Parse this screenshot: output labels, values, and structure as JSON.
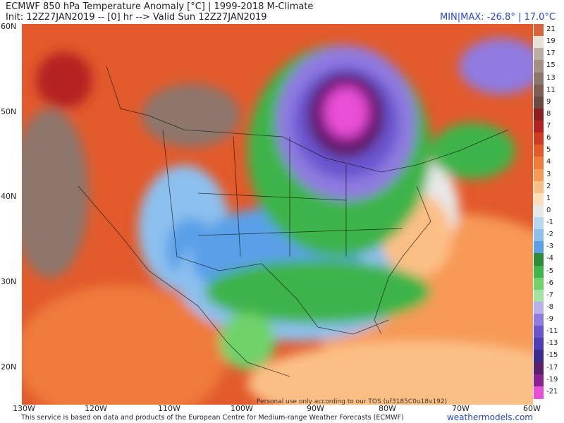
{
  "header": {
    "title": "ECMWF 850 hPa Temperature Anomaly [°C] | 1999-2018 M-Climate",
    "subtitle": "Init: 12Z27JAN2019 -- [0] hr --> Valid Sun 12Z27JAN2019",
    "minmax": "MIN|MAX: -26.8° | 17.0°C"
  },
  "axes": {
    "lat_labels": [
      "60N",
      "50N",
      "40N",
      "30N",
      "20N"
    ],
    "lon_labels": [
      "130W",
      "120W",
      "110W",
      "100W",
      "90W",
      "80W",
      "70W",
      "60W"
    ]
  },
  "legend": {
    "levels": [
      "21",
      "19",
      "17",
      "15",
      "13",
      "11",
      "9",
      "8",
      "7",
      "6",
      "5",
      "4",
      "3",
      "2",
      "1",
      "0",
      "-1",
      "-2",
      "-3",
      "-4",
      "-5",
      "-6",
      "-7",
      "-8",
      "-9",
      "-11",
      "-13",
      "-15",
      "-17",
      "-19",
      "-21"
    ],
    "colors": [
      "#d8643a",
      "#e9e0d8",
      "#bcaea4",
      "#a58e84",
      "#8d766c",
      "#7f5f55",
      "#6b4a43",
      "#8b1e1e",
      "#b52020",
      "#d23a22",
      "#e25a2b",
      "#ef7a3a",
      "#f79a55",
      "#fbbf86",
      "#fde0b8",
      "#e8e8e8",
      "#b8d8f0",
      "#8cc0ee",
      "#5aa0e8",
      "#2f8a3a",
      "#3eb44a",
      "#6fd36a",
      "#a4e4a0",
      "#b7b0ec",
      "#8f7ae0",
      "#6b54cf",
      "#4f3dba",
      "#3a2a90",
      "#5c1e6b",
      "#8e1f8e",
      "#e84fd6"
    ]
  },
  "footer": {
    "note": "This service is based on data and products of the European Centre for Medium-range Weather Forecasts (ECMWF)",
    "brand": "weathermodels.com",
    "personal_use": "Personal use only according to our TOS (uf3185C0u18v192)"
  }
}
